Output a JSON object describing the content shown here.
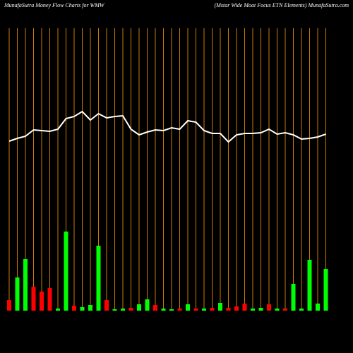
{
  "chart_data": {
    "type": "moneyflow",
    "title": "MunafaSutra  Money Flow  Charts for WMW",
    "subtitle": "(Mstar Wide    Moat Focus ETN   Elements) MunafaSutra.com",
    "ylim": [
      0,
      100
    ],
    "grid_color": "#cc7a00",
    "line_color": "#ffffff",
    "line": [
      60,
      61,
      61.75,
      64,
      63.75,
      63.5,
      64.25,
      68,
      68.75,
      70.5,
      67.5,
      69.75,
      68.25,
      68.75,
      69,
      64.25,
      62.25,
      63.25,
      64,
      63.75,
      64.75,
      64.25,
      67.25,
      66.75,
      63.75,
      62.75,
      62.75,
      59.75,
      62.25,
      62.75,
      62.75,
      63,
      64.25,
      62.5,
      63,
      62.25,
      60.75,
      61,
      61.5,
      62.5
    ],
    "values": [
      3.75,
      11.75,
      18.25,
      8.5,
      6.75,
      8,
      0.75,
      28,
      1.75,
      1.25,
      2,
      23,
      3.75,
      0.5,
      0.75,
      1,
      2.25,
      4,
      2,
      0.75,
      0.5,
      0.75,
      2.25,
      0.75,
      0.75,
      1,
      2.75,
      1,
      1.5,
      2.5,
      0.75,
      1,
      2.25,
      0.75,
      0.75,
      9.5,
      0.75,
      18,
      2.5,
      14.75
    ],
    "colors": [
      "#ff0000",
      "#00ff00",
      "#00ff00",
      "#ff0000",
      "#ff0000",
      "#ff0000",
      "#00ff00",
      "#00ff00",
      "#ff0000",
      "#00ff00",
      "#00ff00",
      "#00ff00",
      "#ff0000",
      "#00ff00",
      "#00ff00",
      "#ff0000",
      "#00ff00",
      "#00ff00",
      "#ff0000",
      "#00ff00",
      "#00ff00",
      "#ff0000",
      "#00ff00",
      "#ff0000",
      "#00ff00",
      "#ff0000",
      "#00ff00",
      "#ff0000",
      "#ff0000",
      "#ff0000",
      "#00ff00",
      "#00ff00",
      "#ff0000",
      "#00ff00",
      "#ff0000",
      "#00ff00",
      "#00ff00",
      "#00ff00",
      "#00ff00",
      "#00ff00"
    ]
  }
}
